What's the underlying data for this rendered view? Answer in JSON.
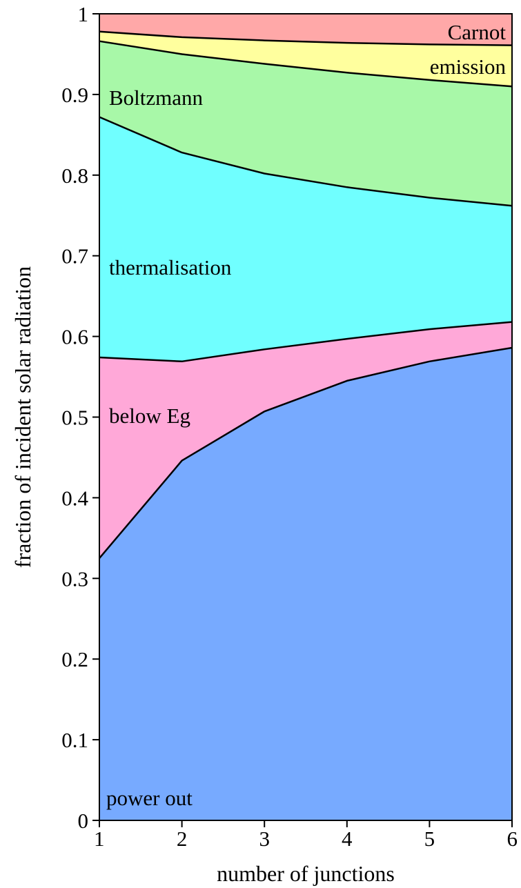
{
  "chart_data": {
    "type": "area",
    "stacked": true,
    "xlabel": "number of junctions",
    "ylabel": "fraction of incident solar radiation",
    "xlim": [
      1,
      6
    ],
    "ylim": [
      0,
      1
    ],
    "x": [
      1,
      2,
      3,
      4,
      5,
      6
    ],
    "x_ticks": [
      "1",
      "2",
      "3",
      "4",
      "5",
      "6"
    ],
    "y_ticks": [
      "0",
      "0.1",
      "0.2",
      "0.3",
      "0.4",
      "0.5",
      "0.6",
      "0.7",
      "0.8",
      "0.9",
      "1"
    ],
    "grid": false,
    "series": [
      {
        "name": "power out",
        "color": "#77aaff",
        "upper_boundary": [
          0.325,
          0.446,
          0.507,
          0.545,
          0.569,
          0.586
        ]
      },
      {
        "name": "below Eg",
        "color": "#ffa8d8",
        "upper_boundary": [
          0.574,
          0.569,
          0.584,
          0.597,
          0.609,
          0.618
        ]
      },
      {
        "name": "thermalisation",
        "color": "#70ffff",
        "upper_boundary": [
          0.872,
          0.828,
          0.802,
          0.785,
          0.772,
          0.762
        ]
      },
      {
        "name": "Boltzmann",
        "color": "#a8f8a8",
        "upper_boundary": [
          0.966,
          0.95,
          0.938,
          0.927,
          0.918,
          0.91
        ]
      },
      {
        "name": "emission",
        "color": "#ffff9e",
        "upper_boundary": [
          0.978,
          0.971,
          0.967,
          0.964,
          0.962,
          0.961
        ]
      },
      {
        "name": "Carnot",
        "color": "#ffa8a8",
        "upper_boundary": [
          1,
          1,
          1,
          1,
          1,
          1
        ]
      }
    ]
  }
}
